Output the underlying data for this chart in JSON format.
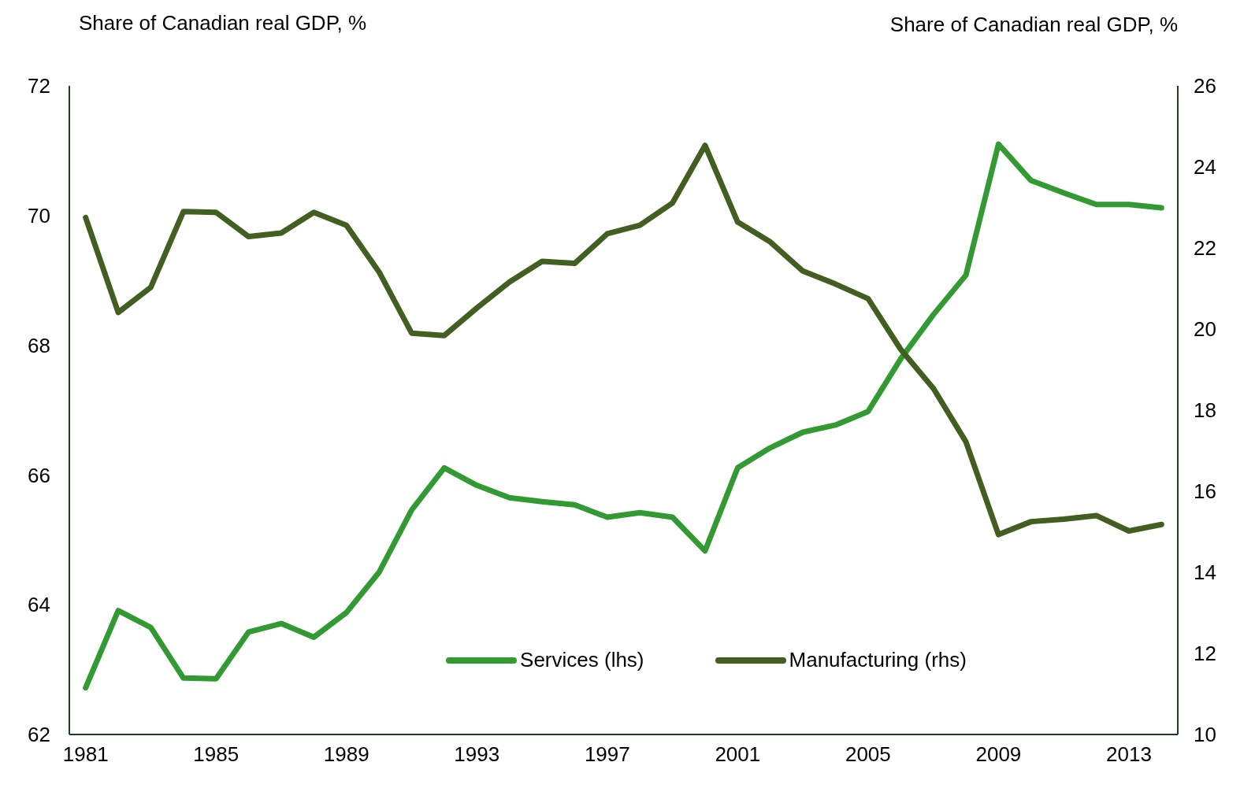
{
  "chart_data": {
    "type": "line",
    "ylabel": "Share of Canadian real GDP, %",
    "y2label": "Share of Canadian real GDP, %",
    "x": [
      1981,
      1982,
      1983,
      1984,
      1985,
      1986,
      1987,
      1988,
      1989,
      1990,
      1991,
      1992,
      1993,
      1994,
      1995,
      1996,
      1997,
      1998,
      1999,
      2000,
      2001,
      2002,
      2003,
      2004,
      2005,
      2006,
      2007,
      2008,
      2009,
      2010,
      2011,
      2012,
      2013,
      2014
    ],
    "series": [
      {
        "name": "Services (lhs)",
        "color": "#339933",
        "values": [
          62.72,
          63.91,
          63.65,
          62.87,
          62.86,
          63.58,
          63.71,
          63.5,
          63.88,
          64.5,
          65.46,
          66.11,
          65.84,
          65.65,
          65.59,
          65.54,
          65.35,
          65.42,
          65.35,
          64.83,
          66.11,
          66.42,
          66.66,
          66.77,
          66.98,
          67.79,
          68.47,
          69.08,
          71.1,
          70.54,
          70.35,
          70.17,
          70.17,
          70.12
        ]
      },
      {
        "name": "Manufacturing (rhs)",
        "color": "#425e20",
        "axis": "y2",
        "values": [
          22.75,
          20.41,
          21.03,
          22.9,
          22.88,
          22.28,
          22.37,
          22.88,
          22.56,
          21.41,
          19.9,
          19.84,
          20.52,
          21.16,
          21.67,
          21.62,
          22.35,
          22.56,
          23.11,
          24.53,
          22.64,
          22.15,
          21.43,
          21.11,
          20.75,
          19.5,
          18.54,
          17.22,
          14.93,
          15.25,
          15.31,
          15.4,
          15.02,
          15.18
        ]
      }
    ],
    "xlim": [
      1980.5,
      2014.5
    ],
    "xticks": [
      1981,
      1985,
      1989,
      1993,
      1997,
      2001,
      2005,
      2009,
      2013
    ],
    "ylim": [
      62,
      72
    ],
    "yticks": [
      62,
      64,
      66,
      68,
      70,
      72
    ],
    "y2lim": [
      10,
      26
    ],
    "y2ticks": [
      10,
      12,
      14,
      16,
      18,
      20,
      22,
      24,
      26
    ],
    "grid": false,
    "legend": "bottom",
    "marker": "none",
    "line_style": "solid"
  }
}
